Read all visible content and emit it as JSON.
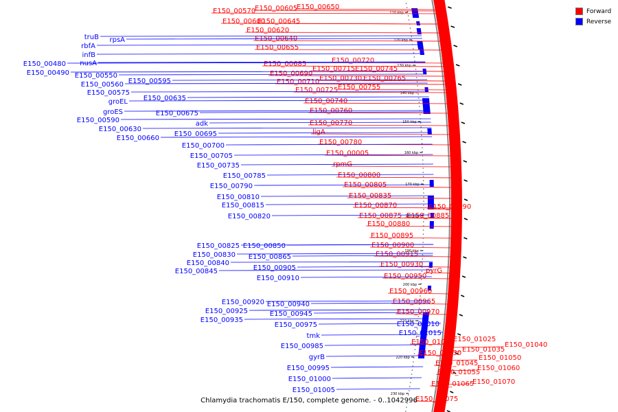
{
  "legend": {
    "forward": {
      "label": "Forward",
      "color": "#ff0000"
    },
    "reverse": {
      "label": "Reverse",
      "color": "#0000ff"
    }
  },
  "title": "Chlamydia trachomatis E/150, complete genome. - 0..1042996",
  "colors": {
    "forward": "#ff0000",
    "reverse": "#0000ff",
    "backbone": "#888888",
    "tick": "#000000"
  },
  "ticks": [
    "110 kbp",
    "120 kbp",
    "130 kbp",
    "140 kbp",
    "150 kbp",
    "160 kbp",
    "170 kbp",
    "180 kbp",
    "190 kbp",
    "200 kbp",
    "210 kbp",
    "220 kbp",
    "230 kbp"
  ],
  "forward_labels": [
    "E150_00570",
    "E150_00605",
    "E150_00650",
    "E150_00600",
    "E150_00645",
    "E150_00620",
    "E150_00640",
    "E150_00655",
    "E150_00720",
    "E150_00685",
    "E150_00715",
    "E150_00745",
    "E150_00690",
    "E150_00730",
    "E150_00765",
    "E150_00710",
    "E150_00755",
    "E150_00725",
    "E150_00740",
    "E150_00760",
    "E150_00770",
    "ligA",
    "E150_00780",
    "E150_00005",
    "rpmG",
    "E150_00800",
    "E150_00805",
    "E150_00835",
    "E150_00870",
    "E150_00890",
    "E150_00875",
    "E150_00885",
    "E150_00880",
    "E150_00895",
    "E150_00900",
    "E150_00915",
    "E150_00930",
    "pyrG",
    "E150_00950",
    "E150_00960",
    "E150_00965",
    "E150_00970",
    "E150_01025",
    "E150_01020",
    "E150_01040",
    "E150_01035",
    "E150_01030",
    "E150_01050",
    "E150_01045",
    "E150_01060",
    "E150_01055",
    "E150_01070",
    "E150_01065",
    "E150_01075"
  ],
  "reverse_labels": [
    "truB",
    "rbfA",
    "infB",
    "nusA",
    "E150_00480",
    "E150_00490",
    "rpsA",
    "E150_00550",
    "E150_00560",
    "E150_00595",
    "E150_00575",
    "E150_00635",
    "groEL",
    "groES",
    "E150_00675",
    "adk",
    "E150_00590",
    "E150_00630",
    "E150_00695",
    "E150_00660",
    "E150_00700",
    "E150_00705",
    "E150_00735",
    "E150_00785",
    "E150_00790",
    "E150_00810",
    "E150_00815",
    "E150_00820",
    "E150_00825",
    "E150_00850",
    "E150_00830",
    "E150_00865",
    "E150_00840",
    "E150_00845",
    "E150_00905",
    "E150_00910",
    "E150_00920",
    "E150_00940",
    "E150_00925",
    "E150_00945",
    "E150_00935",
    "E150_00975",
    "tmk",
    "E150_00985",
    "gyrB",
    "E150_00995",
    "E150_01000",
    "E150_01005",
    "E150_01010",
    "E150_01015"
  ]
}
